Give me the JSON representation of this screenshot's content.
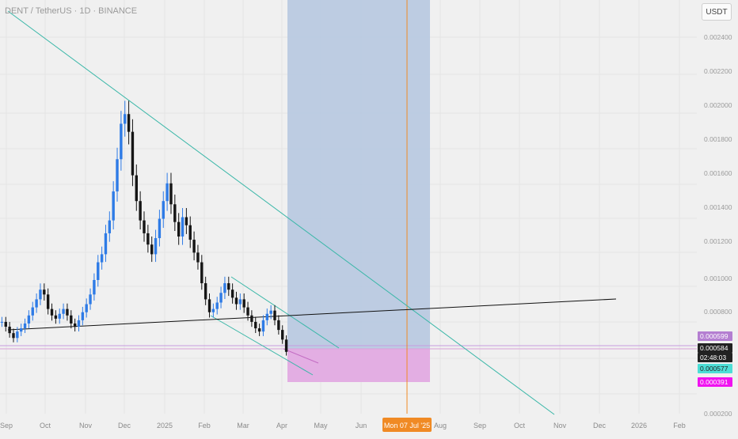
{
  "header": {
    "symbol_title": "DENT / TetherUS · 1D · BINANCE",
    "unit_button": "USDT"
  },
  "chart_data": {
    "type": "line",
    "y_axis": {
      "ticks": [
        "0.002400",
        "0.002200",
        "0.002000",
        "0.001800",
        "0.001600",
        "0.001400",
        "0.001200",
        "0.001000",
        "0.000800",
        "0.000200"
      ],
      "tick_values": [
        0.0024,
        0.0022,
        0.002,
        0.0018,
        0.0016,
        0.0014,
        0.0012,
        0.001,
        0.0008,
        0.0002
      ]
    },
    "x_axis": {
      "ticks": [
        "Sep",
        "Oct",
        "Nov",
        "Dec",
        "2025",
        "Feb",
        "Mar",
        "Apr",
        "May",
        "Jun",
        "Aug",
        "Sep",
        "Oct",
        "Nov",
        "Dec",
        "2026",
        "Feb"
      ]
    },
    "crosshair_date_label": "Mon 07 Jul '25",
    "price_labels": [
      {
        "value": "0.000599",
        "color": "#b47ed1",
        "text_color": "#ffffff"
      },
      {
        "value": "0.000584",
        "color": "#222222",
        "text_color": "#ffffff"
      },
      {
        "value": "02:48:03",
        "color": "#222222",
        "text_color": "#ffffff"
      },
      {
        "value": "0.000577",
        "color": "#4dded6",
        "text_color": "#222222"
      },
      {
        "value": "0.000391",
        "color": "#f012f0",
        "text_color": "#ffffff"
      }
    ],
    "grid": true,
    "colors": {
      "up": "#2e7be6",
      "down": "#151515",
      "trendline": "#3ab7a8",
      "support": "#111111",
      "target_zone": "#b9c9e0",
      "loss_zone": "#e3aee3",
      "crosshair": "#f08a24"
    },
    "series": [
      {
        "values": [
          0.00077,
          0.00074,
          0.0007,
          0.00067,
          0.00071,
          0.00073,
          0.00076,
          0.00081,
          0.00086,
          0.00091,
          0.00097,
          0.00094,
          0.00085,
          0.00081,
          0.00079,
          0.00082,
          0.00085,
          0.00081,
          0.00076,
          0.00074,
          0.00078,
          0.00083,
          0.00088,
          0.00094,
          0.00103,
          0.00114,
          0.00119,
          0.00132,
          0.0014,
          0.00158,
          0.00178,
          0.002,
          0.00206,
          0.00195,
          0.00168,
          0.00152,
          0.0014,
          0.00132,
          0.00125,
          0.00119,
          0.00129,
          0.00141,
          0.00152,
          0.00163,
          0.0015,
          0.00139,
          0.0013,
          0.00142,
          0.00137,
          0.00128,
          0.0012,
          0.00114,
          0.00101,
          0.00091,
          0.00083,
          0.00085,
          0.00089,
          0.00095,
          0.00101,
          0.00097,
          0.00092,
          0.00088,
          0.00091,
          0.00086,
          0.00081,
          0.00077,
          0.00073,
          0.00071,
          0.00078,
          0.00082,
          0.00084,
          0.00078,
          0.00072,
          0.00066,
          0.000584
        ]
      }
    ]
  }
}
